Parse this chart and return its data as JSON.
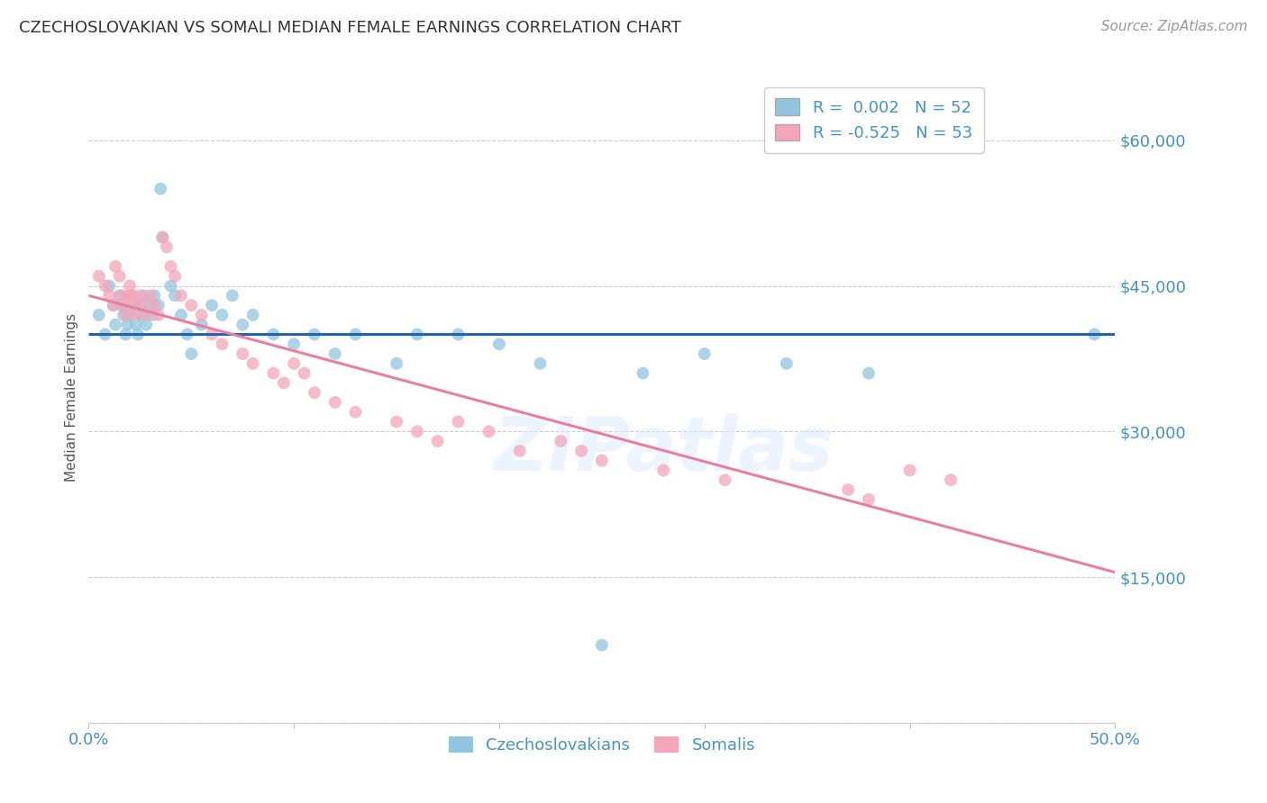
{
  "title": "CZECHOSLOVAKIAN VS SOMALI MEDIAN FEMALE EARNINGS CORRELATION CHART",
  "source": "Source: ZipAtlas.com",
  "ylabel": "Median Female Earnings",
  "xlim": [
    0.0,
    0.5
  ],
  "ylim": [
    0,
    67000
  ],
  "yticks": [
    0,
    15000,
    30000,
    45000,
    60000
  ],
  "ytick_labels": [
    "",
    "$15,000",
    "$30,000",
    "$45,000",
    "$60,000"
  ],
  "xticks": [
    0.0,
    0.1,
    0.2,
    0.3,
    0.4,
    0.5
  ],
  "xtick_labels": [
    "0.0%",
    "",
    "",
    "",
    "",
    "50.0%"
  ],
  "legend_label1": "Czechoslovakians",
  "legend_label2": "Somalis",
  "blue_color": "#92c5de",
  "pink_color": "#f4a6b8",
  "blue_line_color": "#2166ac",
  "pink_line_color": "#e87fa0",
  "axis_color": "#4393c3",
  "grid_color": "#cccccc",
  "czech_line_y0": 40000,
  "czech_line_y1": 40000,
  "somali_line_y0": 44000,
  "somali_line_y1": 15500,
  "czech_x": [
    0.005,
    0.008,
    0.01,
    0.012,
    0.013,
    0.015,
    0.016,
    0.017,
    0.018,
    0.019,
    0.02,
    0.021,
    0.022,
    0.023,
    0.024,
    0.025,
    0.026,
    0.027,
    0.028,
    0.03,
    0.031,
    0.032,
    0.034,
    0.035,
    0.036,
    0.04,
    0.042,
    0.045,
    0.048,
    0.05,
    0.055,
    0.06,
    0.065,
    0.07,
    0.075,
    0.08,
    0.09,
    0.1,
    0.11,
    0.12,
    0.13,
    0.15,
    0.16,
    0.18,
    0.2,
    0.22,
    0.27,
    0.3,
    0.34,
    0.38,
    0.49,
    0.25
  ],
  "czech_y": [
    42000,
    40000,
    45000,
    43000,
    41000,
    44000,
    43000,
    42000,
    40000,
    41000,
    42000,
    44000,
    43000,
    41000,
    40000,
    43000,
    42000,
    44000,
    41000,
    43000,
    42000,
    44000,
    43000,
    55000,
    50000,
    45000,
    44000,
    42000,
    40000,
    38000,
    41000,
    43000,
    42000,
    44000,
    41000,
    42000,
    40000,
    39000,
    40000,
    38000,
    40000,
    37000,
    40000,
    40000,
    39000,
    37000,
    36000,
    38000,
    37000,
    36000,
    40000,
    8000
  ],
  "somali_x": [
    0.005,
    0.008,
    0.01,
    0.012,
    0.013,
    0.015,
    0.016,
    0.017,
    0.018,
    0.019,
    0.02,
    0.021,
    0.022,
    0.023,
    0.025,
    0.026,
    0.028,
    0.03,
    0.032,
    0.034,
    0.036,
    0.038,
    0.04,
    0.042,
    0.045,
    0.05,
    0.055,
    0.06,
    0.065,
    0.075,
    0.08,
    0.09,
    0.095,
    0.1,
    0.105,
    0.11,
    0.12,
    0.13,
    0.15,
    0.16,
    0.17,
    0.18,
    0.195,
    0.21,
    0.23,
    0.24,
    0.25,
    0.28,
    0.31,
    0.37,
    0.38,
    0.4,
    0.42
  ],
  "somali_y": [
    46000,
    45000,
    44000,
    43000,
    47000,
    46000,
    44000,
    43000,
    42000,
    44000,
    45000,
    44000,
    43000,
    42000,
    44000,
    43000,
    42000,
    44000,
    43000,
    42000,
    50000,
    49000,
    47000,
    46000,
    44000,
    43000,
    42000,
    40000,
    39000,
    38000,
    37000,
    36000,
    35000,
    37000,
    36000,
    34000,
    33000,
    32000,
    31000,
    30000,
    29000,
    31000,
    30000,
    28000,
    29000,
    28000,
    27000,
    26000,
    25000,
    24000,
    23000,
    26000,
    25000
  ]
}
